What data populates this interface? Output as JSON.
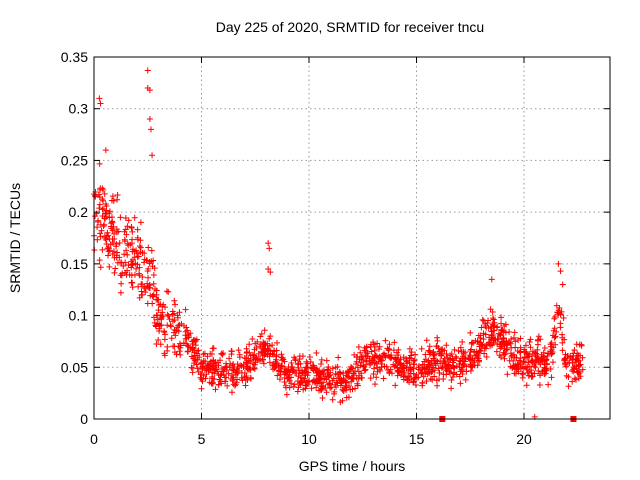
{
  "chart_data": {
    "type": "scatter",
    "title": "Day 225 of 2020, SRMTID for receiver tncu",
    "xlabel": "GPS time / hours",
    "ylabel": "SRMTID / TECUs",
    "xlim": [
      0,
      24
    ],
    "ylim": [
      0,
      0.35
    ],
    "xticks": [
      0,
      5,
      10,
      15,
      20
    ],
    "xtick_labels": [
      "0",
      "5",
      "10",
      "15",
      "20"
    ],
    "yticks": [
      0,
      0.05,
      0.1,
      0.15,
      0.2,
      0.25,
      0.3,
      0.35
    ],
    "ytick_labels": [
      "0",
      "0.05",
      "0.1",
      "0.15",
      "0.2",
      "0.25",
      "0.3",
      "0.35"
    ],
    "grid": true,
    "marker": "plus",
    "color": "#ff0000",
    "trend": [
      [
        0.0,
        0.19
      ],
      [
        0.5,
        0.2
      ],
      [
        1.0,
        0.17
      ],
      [
        1.5,
        0.16
      ],
      [
        2.0,
        0.15
      ],
      [
        2.5,
        0.14
      ],
      [
        3.0,
        0.1
      ],
      [
        3.5,
        0.09
      ],
      [
        4.0,
        0.09
      ],
      [
        4.5,
        0.07
      ],
      [
        5.0,
        0.05
      ],
      [
        6.0,
        0.045
      ],
      [
        7.0,
        0.05
      ],
      [
        8.0,
        0.07
      ],
      [
        9.0,
        0.045
      ],
      [
        10.0,
        0.045
      ],
      [
        11.0,
        0.04
      ],
      [
        11.8,
        0.035
      ],
      [
        12.5,
        0.055
      ],
      [
        13.5,
        0.06
      ],
      [
        15.0,
        0.045
      ],
      [
        16.0,
        0.06
      ],
      [
        16.8,
        0.05
      ],
      [
        17.5,
        0.06
      ],
      [
        18.5,
        0.085
      ],
      [
        19.5,
        0.06
      ],
      [
        20.5,
        0.055
      ],
      [
        21.2,
        0.05
      ],
      [
        21.6,
        0.11
      ],
      [
        22.0,
        0.05
      ],
      [
        22.7,
        0.055
      ]
    ],
    "spread": [
      [
        0.0,
        0.06
      ],
      [
        3.0,
        0.05
      ],
      [
        5.0,
        0.03
      ],
      [
        12.0,
        0.025
      ],
      [
        17.0,
        0.03
      ],
      [
        19.0,
        0.03
      ],
      [
        24.0,
        0.03
      ]
    ],
    "highlights": [
      {
        "x": 0.25,
        "y": 0.31
      },
      {
        "x": 0.3,
        "y": 0.305
      },
      {
        "x": 0.55,
        "y": 0.26
      },
      {
        "x": 2.5,
        "y": 0.337
      },
      {
        "x": 2.5,
        "y": 0.32
      },
      {
        "x": 2.6,
        "y": 0.318
      },
      {
        "x": 2.6,
        "y": 0.29
      },
      {
        "x": 2.65,
        "y": 0.28
      },
      {
        "x": 2.7,
        "y": 0.255
      },
      {
        "x": 8.1,
        "y": 0.17
      },
      {
        "x": 8.15,
        "y": 0.165
      },
      {
        "x": 8.1,
        "y": 0.145
      },
      {
        "x": 8.2,
        "y": 0.142
      },
      {
        "x": 21.6,
        "y": 0.15
      },
      {
        "x": 21.7,
        "y": 0.143
      },
      {
        "x": 21.8,
        "y": 0.13
      },
      {
        "x": 18.5,
        "y": 0.135
      }
    ],
    "baseline_markers": [
      16.2,
      22.3
    ],
    "baseline_cross": [
      20.5
    ],
    "x_end": 22.75
  }
}
